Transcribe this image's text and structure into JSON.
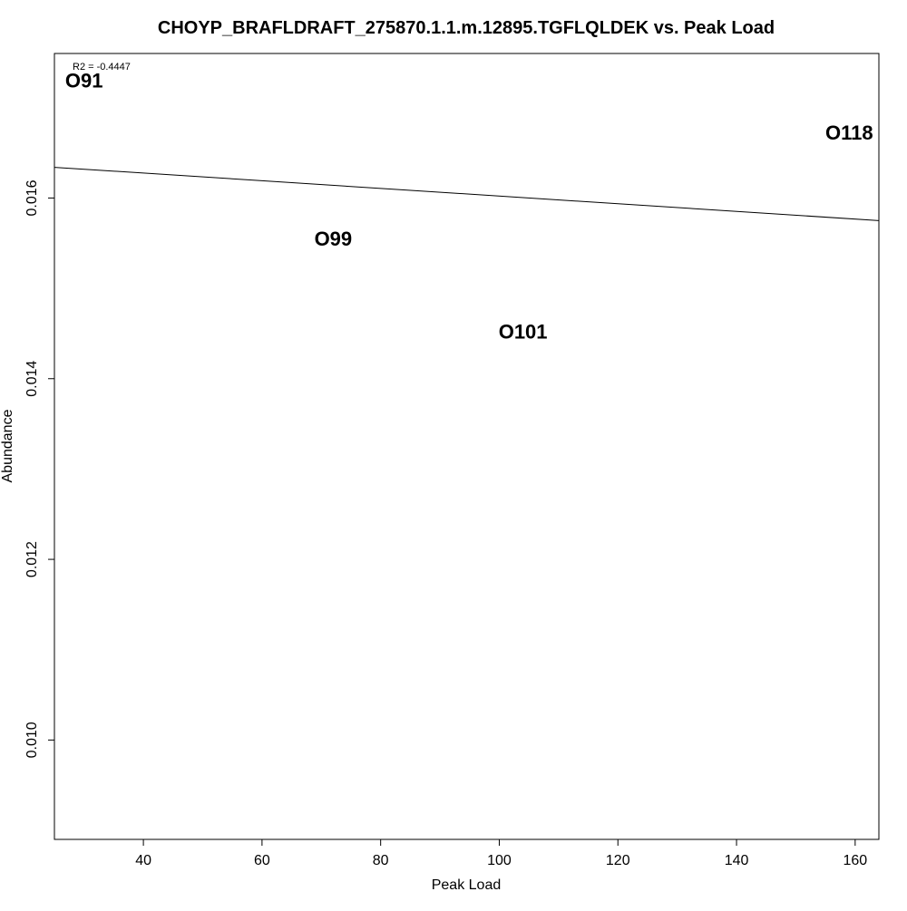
{
  "chart_data": {
    "type": "scatter",
    "title": "CHOYP_BRAFLDRAFT_275870.1.1.m.12895.TGFLQLDEK vs. Peak Load",
    "xlabel": "Peak Load",
    "ylabel": "Abundance",
    "xlim": [
      25,
      164
    ],
    "ylim": [
      0.0089,
      0.0176
    ],
    "xticks": [
      40,
      60,
      80,
      100,
      120,
      140,
      160
    ],
    "yticks": [
      0.01,
      0.012,
      0.014,
      0.016
    ],
    "ytick_labels": [
      "0.010",
      "0.012",
      "0.014",
      "0.016"
    ],
    "points": [
      {
        "label": "O91",
        "x": 30,
        "y": 0.0173
      },
      {
        "label": "O99",
        "x": 72,
        "y": 0.01555
      },
      {
        "label": "O101",
        "x": 104,
        "y": 0.01452
      },
      {
        "label": "O118",
        "x": 159,
        "y": 0.01672
      }
    ],
    "regression": {
      "x": [
        25,
        164
      ],
      "y": [
        0.01634,
        0.01575
      ]
    },
    "annotation": "R2 = -0.4447",
    "grid": false,
    "legend": "none"
  }
}
